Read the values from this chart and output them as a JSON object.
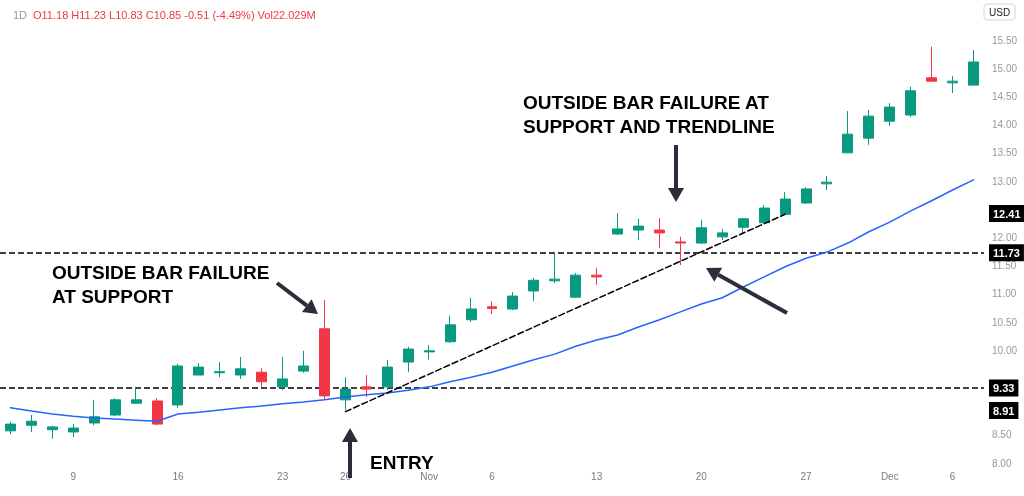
{
  "chart_data": {
    "type": "candlestick",
    "title": "1D",
    "subtitle": "O11.18 H11.23 L10.83 C10.85 -0.51 (-4.49%) Vol22.029M",
    "ylabel": "USD",
    "annotations": [
      "OUTSIDE BAR FAILURE AT SUPPORT",
      "OUTSIDE BAR FAILURE AT SUPPORT AND TRENDLINE",
      "ENTRY",
      "8.91",
      "12.41"
    ],
    "categories": [
      null,
      null,
      null,
      "9",
      null,
      null,
      null,
      null,
      "16",
      null,
      null,
      null,
      null,
      "23",
      null,
      null,
      "26",
      null,
      null,
      null,
      "Nov",
      null,
      null,
      "6",
      null,
      null,
      null,
      null,
      "13",
      null,
      null,
      null,
      null,
      "20",
      null,
      null,
      null,
      null,
      "27",
      null,
      null,
      null,
      "Dec",
      null,
      null,
      "6",
      null
    ],
    "ohlc": [
      [
        8.57,
        8.73,
        8.51,
        8.69
      ],
      [
        8.67,
        8.85,
        8.55,
        8.74
      ],
      [
        8.59,
        8.66,
        8.43,
        8.64
      ],
      [
        8.55,
        8.69,
        8.46,
        8.62
      ],
      [
        8.71,
        9.12,
        8.67,
        8.82
      ],
      [
        8.85,
        9.15,
        8.83,
        9.12
      ],
      [
        9.06,
        9.35,
        9.05,
        9.12
      ],
      [
        9.1,
        9.15,
        8.67,
        8.69
      ],
      [
        9.03,
        9.76,
        8.98,
        9.72
      ],
      [
        9.56,
        9.77,
        9.56,
        9.7
      ],
      [
        9.6,
        9.79,
        9.52,
        9.62
      ],
      [
        9.56,
        9.88,
        9.49,
        9.67
      ],
      [
        9.61,
        9.68,
        9.35,
        9.44
      ],
      [
        9.35,
        9.88,
        9.29,
        9.49
      ],
      [
        9.63,
        9.99,
        9.6,
        9.72
      ],
      [
        10.38,
        10.89,
        9.12,
        9.19
      ],
      [
        9.12,
        9.52,
        8.94,
        9.31
      ],
      [
        9.35,
        9.56,
        9.17,
        9.31
      ],
      [
        9.35,
        9.83,
        9.29,
        9.7
      ],
      [
        9.79,
        10.06,
        9.61,
        10.02
      ],
      [
        9.97,
        10.09,
        9.83,
        9.99
      ],
      [
        10.15,
        10.61,
        10.13,
        10.45
      ],
      [
        10.54,
        10.93,
        10.5,
        10.73
      ],
      [
        10.77,
        10.87,
        10.64,
        10.74
      ],
      [
        10.73,
        11.03,
        10.71,
        10.96
      ],
      [
        11.05,
        11.28,
        10.87,
        11.24
      ],
      [
        11.23,
        11.73,
        11.19,
        11.26
      ],
      [
        10.94,
        11.37,
        10.93,
        11.33
      ],
      [
        11.33,
        11.46,
        11.16,
        11.3
      ],
      [
        12.06,
        12.43,
        12.05,
        12.15
      ],
      [
        12.13,
        12.33,
        11.95,
        12.2
      ],
      [
        12.13,
        12.34,
        11.81,
        12.08
      ],
      [
        11.92,
        12.01,
        11.51,
        11.9
      ],
      [
        11.9,
        12.31,
        11.88,
        12.17
      ],
      [
        12.01,
        12.15,
        11.95,
        12.08
      ],
      [
        12.18,
        12.34,
        12.06,
        12.33
      ],
      [
        12.26,
        12.57,
        12.26,
        12.52
      ],
      [
        12.41,
        12.8,
        12.4,
        12.68
      ],
      [
        12.61,
        12.89,
        12.59,
        12.86
      ],
      [
        12.95,
        13.09,
        12.84,
        12.98
      ],
      [
        13.5,
        14.24,
        13.5,
        13.83
      ],
      [
        13.76,
        14.26,
        13.64,
        14.15
      ],
      [
        14.06,
        14.38,
        13.98,
        14.31
      ],
      [
        14.17,
        14.67,
        14.13,
        14.6
      ],
      [
        14.83,
        15.38,
        14.77,
        14.77
      ],
      [
        14.74,
        14.86,
        14.56,
        14.77
      ],
      [
        14.7,
        15.32,
        14.7,
        15.11
      ]
    ],
    "colors": [
      "#089981",
      "#089981",
      "#089981",
      "#089981",
      "#089981",
      "#089981",
      "#089981",
      "#f23645",
      "#089981",
      "#089981",
      "#089981",
      "#089981",
      "#f23645",
      "#089981",
      "#089981",
      "#f23645",
      "#089981",
      "#f23645",
      "#089981",
      "#089981",
      "#089981",
      "#089981",
      "#089981",
      "#f23645",
      "#089981",
      "#089981",
      "#089981",
      "#089981",
      "#f23645",
      "#089981",
      "#089981",
      "#f23645",
      "#f23645",
      "#089981",
      "#089981",
      "#089981",
      "#089981",
      "#089981",
      "#089981",
      "#089981",
      "#089981",
      "#089981",
      "#089981",
      "#089981",
      "#f23645",
      "#089981",
      "#089981"
    ],
    "series": [
      {
        "type": "line",
        "color": "#2962ff",
        "line_style": "solid",
        "values": [
          8.98,
          8.92,
          8.87,
          8.83,
          8.8,
          8.78,
          8.76,
          8.74,
          8.87,
          8.9,
          8.94,
          8.98,
          9.01,
          9.05,
          9.08,
          9.12,
          9.17,
          9.21,
          9.24,
          9.29,
          9.35,
          9.44,
          9.52,
          9.61,
          9.72,
          9.83,
          9.93,
          10.07,
          10.18,
          10.27,
          10.41,
          10.54,
          10.68,
          10.82,
          10.93,
          11.12,
          11.3,
          11.48,
          11.63,
          11.74,
          11.9,
          12.1,
          12.27,
          12.47,
          12.65,
          12.84,
          13.02
        ]
      },
      {
        "type": "line",
        "color": "#000000",
        "line_style": "dashed",
        "values": [
          null,
          null,
          null,
          null,
          null,
          null,
          null,
          null,
          null,
          null,
          null,
          null,
          null,
          null,
          null,
          null,
          8.91,
          null,
          null,
          null,
          null,
          null,
          null,
          null,
          null,
          null,
          null,
          null,
          null,
          null,
          null,
          null,
          null,
          null,
          null,
          null,
          null,
          12.41,
          null,
          null,
          null,
          null,
          null,
          null,
          null,
          null,
          null
        ]
      }
    ],
    "ref_lines": [
      {
        "axis": "y",
        "value": 9.33,
        "label": "9.33",
        "color": "#000000",
        "line_style": "dashed"
      },
      {
        "axis": "y",
        "value": 11.73,
        "label": "11.73",
        "color": "#000000",
        "line_style": "dashed"
      }
    ],
    "ylim": [
      8,
      15.5
    ],
    "yticks": [
      {
        "value": 8,
        "label": "8.00"
      },
      {
        "value": 8.5,
        "label": "8.50"
      },
      {
        "value": 10,
        "label": "10.00"
      },
      {
        "value": 10.5,
        "label": "10.50"
      },
      {
        "value": 11,
        "label": "11.00"
      },
      {
        "value": 11.5,
        "label": "11.50"
      },
      {
        "value": 12,
        "label": "12.00"
      },
      {
        "value": 13,
        "label": "13.00"
      },
      {
        "value": 13.5,
        "label": "13.50"
      },
      {
        "value": 14,
        "label": "14.00"
      },
      {
        "value": 14.5,
        "label": "14.50"
      },
      {
        "value": 15,
        "label": "15.00"
      },
      {
        "value": 15.5,
        "label": "15.50"
      }
    ],
    "marker": "none"
  }
}
